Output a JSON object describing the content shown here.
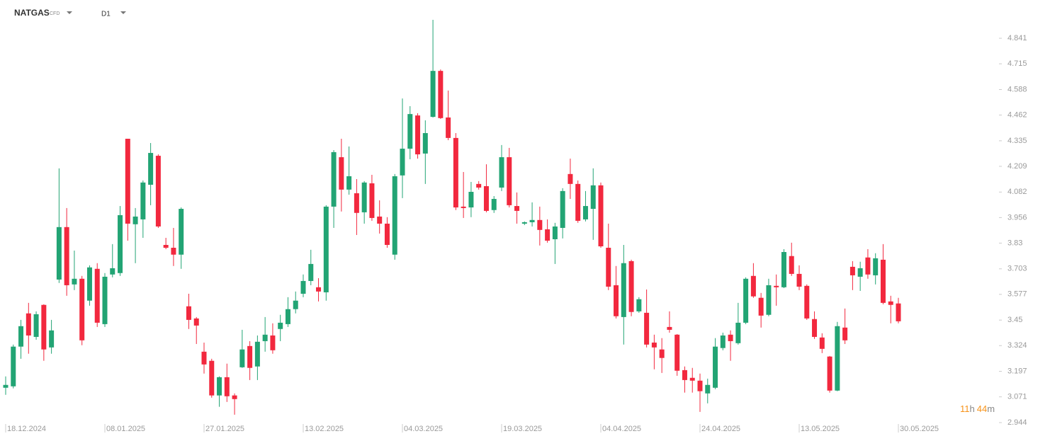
{
  "toolbar": {
    "symbol": "NATGAS",
    "market": "CFD",
    "timeframe": "D1"
  },
  "countdown": {
    "hours": "11",
    "hours_unit": "h",
    "minutes": "44",
    "minutes_unit": "m"
  },
  "chart_data": {
    "type": "candlestick",
    "up_color": "#22a474",
    "down_color": "#f2283e",
    "categories": [
      "18.12.2024",
      null,
      null,
      null,
      null,
      null,
      null,
      null,
      null,
      null,
      null,
      null,
      null,
      "08.01.2025",
      null,
      null,
      null,
      null,
      null,
      null,
      null,
      null,
      null,
      null,
      null,
      null,
      "27.01.2025",
      null,
      null,
      null,
      null,
      null,
      null,
      null,
      null,
      null,
      null,
      null,
      null,
      "13.02.2025",
      null,
      null,
      null,
      null,
      null,
      null,
      null,
      null,
      null,
      null,
      null,
      null,
      "04.03.2025",
      null,
      null,
      null,
      null,
      null,
      null,
      null,
      null,
      null,
      null,
      null,
      null,
      "19.03.2025",
      null,
      null,
      null,
      null,
      null,
      null,
      null,
      null,
      null,
      null,
      null,
      null,
      "04.04.2025",
      null,
      null,
      null,
      null,
      null,
      null,
      null,
      null,
      null,
      null,
      null,
      null,
      "24.04.2025",
      null,
      null,
      null,
      null,
      null,
      null,
      null,
      null,
      null,
      null,
      null,
      null,
      "13.05.2025",
      null,
      null,
      null,
      null,
      null,
      null,
      null,
      null,
      null,
      null,
      null,
      null,
      "30.05.2025"
    ],
    "open": [
      3.116,
      3.123,
      3.319,
      3.483,
      3.367,
      3.525,
      3.315,
      3.65,
      3.909,
      3.626,
      3.654,
      3.546,
      3.703,
      3.43,
      3.675,
      3.682,
      4.345,
      3.923,
      3.947,
      4.118,
      4.261,
      3.821,
      3.807,
      3.773,
      3.518,
      3.458,
      3.294,
      3.249,
      3.078,
      3.168,
      3.078,
      3.217,
      3.322,
      3.221,
      3.346,
      3.374,
      3.406,
      3.43,
      3.504,
      3.58,
      3.643,
      3.612,
      3.587,
      4.01,
      4.254,
      4.094,
      4.076,
      3.982,
      4.125,
      3.961,
      3.926,
      3.773,
      4.164,
      4.296,
      4.46,
      4.272,
      4.453,
      4.68,
      4.45,
      4.349,
      4.01,
      4.006,
      4.122,
      4.111,
      3.993,
      4.104,
      4.254,
      4.013,
      3.926,
      3.933,
      3.944,
      3.898,
      3.849,
      3.905,
      4.171,
      4.122,
      3.947,
      3.999,
      4.115,
      3.807,
      3.622,
      3.465,
      3.741,
      3.493,
      3.486,
      3.339,
      3.305,
      3.416,
      3.378,
      3.203,
      3.165,
      3.151,
      3.088,
      3.116,
      3.312,
      3.378,
      3.336,
      3.437,
      3.668,
      3.56,
      3.476,
      3.619,
      3.612,
      3.766,
      3.678,
      3.619,
      3.455,
      3.364,
      3.27,
      3.102,
      3.413,
      3.713,
      3.664,
      3.759,
      3.671,
      3.748,
      3.542,
      3.532
    ],
    "high": [
      3.172,
      3.329,
      3.451,
      3.535,
      3.493,
      3.528,
      3.451,
      4.199,
      4.003,
      3.793,
      3.668,
      3.72,
      3.731,
      3.682,
      3.825,
      4.013,
      4.345,
      4.003,
      4.139,
      4.324,
      4.268,
      3.856,
      3.905,
      4.006,
      3.58,
      3.465,
      3.339,
      3.259,
      3.172,
      3.235,
      3.088,
      3.402,
      3.346,
      3.374,
      3.465,
      3.434,
      3.476,
      3.563,
      3.591,
      3.675,
      3.797,
      3.657,
      4.017,
      4.289,
      4.345,
      4.307,
      4.146,
      4.136,
      4.167,
      4.041,
      3.958,
      4.171,
      4.544,
      4.506,
      4.471,
      4.436,
      4.932,
      4.687,
      4.583,
      4.373,
      4.181,
      4.132,
      4.136,
      4.219,
      4.062,
      4.314,
      4.3,
      4.08,
      3.937,
      4.031,
      4.01,
      3.947,
      3.93,
      4.101,
      4.247,
      4.139,
      4.087,
      4.199,
      4.129,
      3.926,
      3.717,
      3.821,
      3.748,
      3.563,
      3.601,
      3.378,
      3.361,
      3.493,
      3.381,
      3.221,
      3.214,
      3.186,
      3.161,
      3.361,
      3.388,
      3.399,
      3.535,
      3.661,
      3.731,
      3.584,
      3.654,
      3.675,
      3.8,
      3.832,
      3.72,
      3.626,
      3.493,
      3.385,
      3.273,
      3.441,
      3.507,
      3.741,
      3.738,
      3.8,
      3.78,
      3.825,
      3.57,
      3.56
    ],
    "low": [
      3.081,
      3.113,
      3.259,
      3.284,
      3.353,
      3.249,
      3.284,
      3.633,
      3.57,
      3.598,
      3.326,
      3.521,
      3.416,
      3.416,
      3.661,
      3.668,
      3.842,
      3.731,
      3.856,
      4.017,
      3.905,
      3.8,
      3.717,
      3.703,
      3.406,
      3.332,
      3.186,
      3.067,
      3.022,
      3.046,
      2.983,
      3.214,
      3.154,
      3.154,
      3.294,
      3.284,
      3.346,
      3.416,
      3.483,
      3.563,
      3.622,
      3.542,
      3.546,
      3.905,
      3.986,
      4.069,
      3.87,
      3.926,
      3.94,
      3.877,
      3.807,
      3.748,
      4.052,
      4.244,
      4.247,
      4.122,
      4.45,
      4.443,
      4.338,
      3.993,
      3.954,
      3.958,
      4.094,
      3.982,
      3.979,
      4.087,
      4.006,
      3.926,
      3.919,
      3.912,
      3.818,
      3.832,
      3.727,
      3.853,
      4.048,
      3.93,
      3.937,
      3.846,
      3.807,
      3.598,
      3.458,
      3.329,
      3.469,
      3.486,
      3.315,
      3.207,
      3.189,
      3.388,
      3.175,
      3.092,
      3.092,
      2.997,
      3.039,
      3.109,
      3.301,
      3.249,
      3.329,
      3.43,
      3.56,
      3.413,
      3.469,
      3.521,
      3.608,
      3.668,
      3.598,
      3.451,
      3.357,
      3.287,
      3.092,
      3.099,
      3.332,
      3.598,
      3.594,
      3.654,
      3.626,
      3.528,
      3.434,
      3.434
    ],
    "close": [
      3.13,
      3.319,
      3.42,
      3.374,
      3.479,
      3.305,
      3.399,
      3.909,
      3.622,
      3.654,
      3.35,
      3.71,
      3.437,
      3.664,
      3.706,
      3.968,
      3.926,
      3.961,
      4.129,
      4.275,
      3.912,
      3.807,
      3.773,
      3.999,
      3.451,
      3.423,
      3.231,
      3.078,
      3.168,
      3.074,
      3.06,
      3.305,
      3.214,
      3.343,
      3.378,
      3.301,
      3.437,
      3.504,
      3.546,
      3.643,
      3.727,
      3.591,
      4.01,
      4.279,
      4.094,
      4.16,
      3.979,
      4.129,
      3.954,
      3.926,
      3.821,
      4.16,
      4.296,
      4.467,
      4.268,
      4.373,
      4.68,
      4.447,
      4.349,
      4.006,
      4.003,
      4.083,
      4.104,
      3.989,
      4.048,
      4.254,
      4.017,
      3.989,
      3.933,
      3.944,
      3.895,
      3.842,
      3.912,
      4.087,
      4.122,
      3.94,
      4.013,
      4.115,
      3.814,
      3.615,
      3.469,
      3.731,
      3.49,
      3.553,
      3.329,
      3.315,
      3.263,
      3.402,
      3.2,
      3.154,
      3.151,
      3.099,
      3.13,
      3.319,
      3.374,
      3.346,
      3.437,
      3.654,
      3.567,
      3.472,
      3.622,
      3.612,
      3.786,
      3.678,
      3.615,
      3.458,
      3.367,
      3.308,
      3.102,
      3.42,
      3.35,
      3.671,
      3.706,
      3.675,
      3.755,
      3.535,
      3.525,
      3.444
    ],
    "ylim": [
      2.944,
      4.995
    ],
    "yticks": [
      4.841,
      4.715,
      4.588,
      4.462,
      4.335,
      4.209,
      4.082,
      3.956,
      3.83,
      3.703,
      3.577,
      3.45,
      3.324,
      3.197,
      3.071,
      2.944
    ]
  }
}
